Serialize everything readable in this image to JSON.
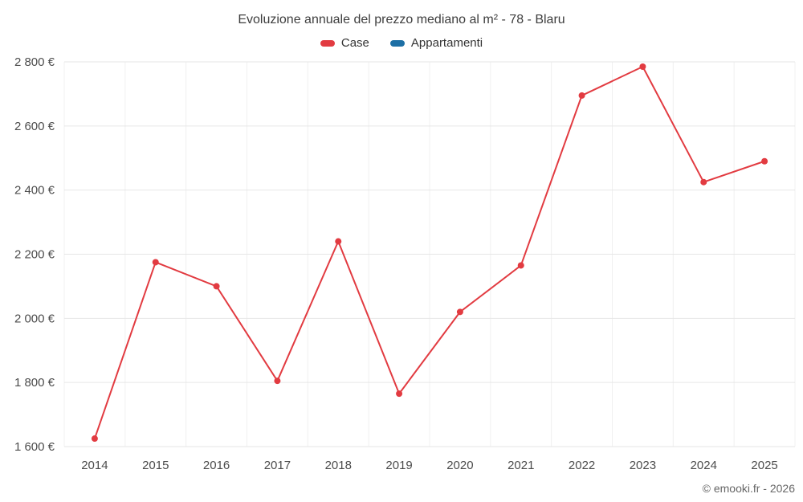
{
  "chart": {
    "title": "Evoluzione annuale del prezzo mediano al m² - 78 - Blaru",
    "footer": "© emooki.fr - 2026"
  },
  "legend": [
    {
      "label": "Case",
      "color": "#e23b41"
    },
    {
      "label": "Appartamenti",
      "color": "#1d6fa5"
    }
  ],
  "chart_data": {
    "type": "line",
    "title": "Evoluzione annuale del prezzo mediano al m² - 78 - Blaru",
    "categories": [
      "2014",
      "2015",
      "2016",
      "2017",
      "2018",
      "2019",
      "2020",
      "2021",
      "2022",
      "2023",
      "2024",
      "2025"
    ],
    "series": [
      {
        "name": "Case",
        "color": "#e23b41",
        "values": [
          1625,
          2175,
          2100,
          1805,
          2240,
          1765,
          2020,
          2165,
          2695,
          2785,
          2425,
          2490
        ]
      },
      {
        "name": "Appartamenti",
        "color": "#1d6fa5",
        "values": []
      }
    ],
    "xlabel": "",
    "ylabel": "",
    "ylim": [
      1600,
      2800
    ],
    "ytick_step": 200,
    "ytick_suffix": "€",
    "grid": true,
    "legend_position": "top",
    "colors": {
      "h_gridline": "#e6e6e6",
      "v_gridline": "#f0f0f0",
      "axis_text": "#4c4c4c"
    }
  }
}
